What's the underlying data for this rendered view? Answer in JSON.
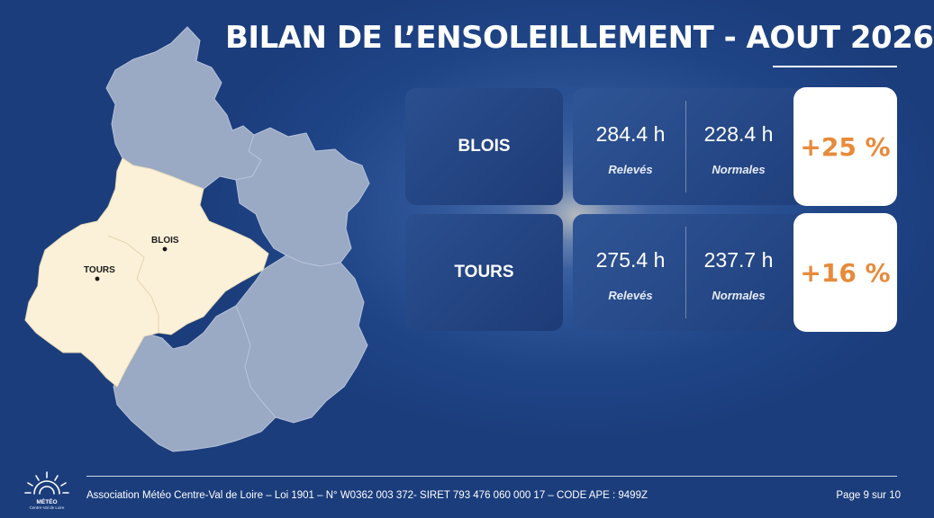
{
  "title": "BILAN DE L’ENSOLEILLEMENT - AOUT 2026",
  "map": {
    "cities": [
      {
        "name": "BLOIS"
      },
      {
        "name": "TOURS"
      }
    ],
    "colors": {
      "highlight": "#fbf1d8",
      "other": "#9aa9c4"
    }
  },
  "rows": [
    {
      "city": "BLOIS",
      "releves": "284.4 h",
      "normales": "228.4 h",
      "releves_label": "Relevés",
      "normales_label": "Normales",
      "delta": "+25 %"
    },
    {
      "city": "TOURS",
      "releves": "275.4 h",
      "normales": "237.7 h",
      "releves_label": "Relevés",
      "normales_label": "Normales",
      "delta": "+16 %"
    }
  ],
  "footer": {
    "text": "Association Météo Centre-Val de Loire – Loi 1901 – N° W0362 003 372- SIRET 793 476 060 000 17 – CODE APE : 9499Z",
    "page": "Page 9 sur 10",
    "logo_title": "MÉTÉO",
    "logo_sub": "Centre-Val de Loire"
  },
  "colors": {
    "accent": "#e78a3a",
    "background": "#1f4587"
  }
}
